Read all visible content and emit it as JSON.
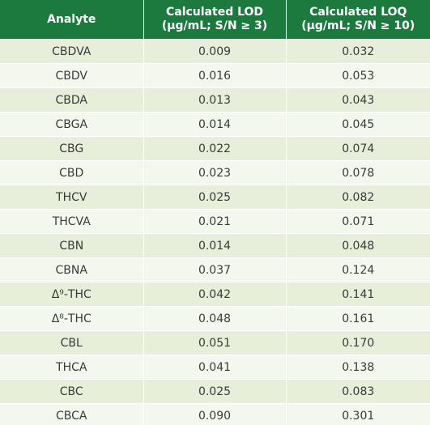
{
  "table": {
    "header": [
      [
        "Analyte"
      ],
      [
        "Calculated LOD",
        "(µg/mL; S/N ≥ 3)"
      ],
      [
        "Calculated LOQ",
        "(µg/mL; S/N ≥ 10)"
      ]
    ],
    "rows": [
      [
        "CBDVA",
        "0.009",
        "0.032"
      ],
      [
        "CBDV",
        "0.016",
        "0.053"
      ],
      [
        "CBDA",
        "0.013",
        "0.043"
      ],
      [
        "CBGA",
        "0.014",
        "0.045"
      ],
      [
        "CBG",
        "0.022",
        "0.074"
      ],
      [
        "CBD",
        "0.023",
        "0.078"
      ],
      [
        "THCV",
        "0.025",
        "0.082"
      ],
      [
        "THCVA",
        "0.021",
        "0.071"
      ],
      [
        "CBN",
        "0.014",
        "0.048"
      ],
      [
        "CBNA",
        "0.037",
        "0.124"
      ],
      [
        "Δ⁹-THC",
        "0.042",
        "0.141"
      ],
      [
        "Δ⁸-THC",
        "0.048",
        "0.161"
      ],
      [
        "CBL",
        "0.051",
        "0.170"
      ],
      [
        "THCA",
        "0.041",
        "0.138"
      ],
      [
        "CBC",
        "0.025",
        "0.083"
      ],
      [
        "CBCA",
        "0.090",
        "0.301"
      ]
    ]
  }
}
